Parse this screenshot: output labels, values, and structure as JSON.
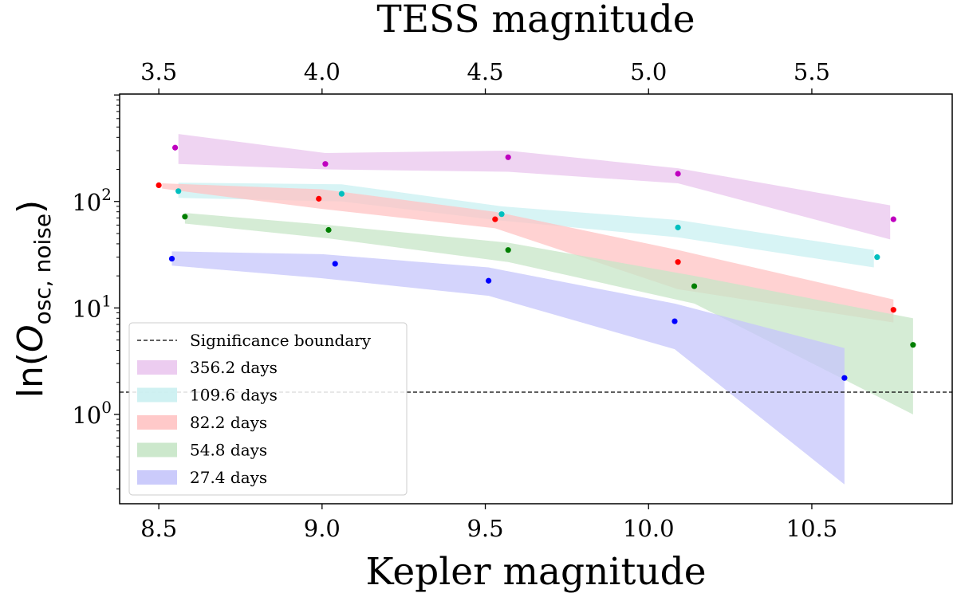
{
  "chart_data": {
    "type": "line",
    "title": "",
    "xlabel": "Kepler magnitude",
    "x2label": "TESS magnitude",
    "ylabel": {
      "prefix": "ln(",
      "var": "O",
      "sub": "osc, noise",
      "suffix": ")"
    },
    "yscale": "log",
    "xlim": [
      8.38,
      10.93
    ],
    "ylim": [
      0.145,
      1020
    ],
    "x_ticks": [
      8.5,
      9.0,
      9.5,
      10.0,
      10.5
    ],
    "x_tick_labels": [
      "8.5",
      "9.0",
      "9.5",
      "10.0",
      "10.5"
    ],
    "x2_ticks": [
      8.5,
      9.0,
      9.5,
      10.0,
      10.5
    ],
    "x2_tick_labels": [
      "3.5",
      "4.0",
      "4.5",
      "5.0",
      "5.5"
    ],
    "y_ticks": [
      1,
      10,
      100
    ],
    "y_tick_labels": [
      {
        "base": "10",
        "exp": "0"
      },
      {
        "base": "10",
        "exp": "1"
      },
      {
        "base": "10",
        "exp": "2"
      }
    ],
    "threshold": {
      "label": "Significance boundary",
      "value": 1.62
    },
    "series": [
      {
        "name": "356.2 days",
        "color": "#bf00bf",
        "fill": "#eac6ee",
        "points": [
          [
            8.55,
            320
          ],
          [
            9.01,
            225
          ],
          [
            9.57,
            260
          ],
          [
            10.09,
            182
          ],
          [
            10.75,
            68
          ]
        ],
        "band_x": [
          8.56,
          9.01,
          9.57,
          10.09,
          10.74
        ],
        "band_upper": [
          430,
          285,
          300,
          205,
          92
        ],
        "band_lower": [
          225,
          200,
          190,
          148,
          44
        ]
      },
      {
        "name": "109.6 days",
        "color": "#00bfbf",
        "fill": "#caf0f1",
        "points": [
          [
            8.56,
            125
          ],
          [
            9.06,
            118
          ],
          [
            9.55,
            76
          ],
          [
            10.09,
            57
          ],
          [
            10.7,
            30
          ]
        ],
        "band_x": [
          8.56,
          9.06,
          9.55,
          10.09,
          10.69
        ],
        "band_upper": [
          150,
          145,
          90,
          67,
          35
        ],
        "band_lower": [
          108,
          100,
          66,
          46,
          24
        ]
      },
      {
        "name": "82.2 days",
        "color": "#ff0000",
        "fill": "#ffc3c3",
        "points": [
          [
            8.5,
            142
          ],
          [
            8.99,
            106
          ],
          [
            9.53,
            68
          ],
          [
            10.09,
            27
          ],
          [
            10.75,
            9.6
          ]
        ],
        "band_x": [
          8.51,
          9.0,
          9.53,
          10.09,
          10.75
        ],
        "band_upper": [
          148,
          130,
          80,
          35,
          12
        ],
        "band_lower": [
          132,
          85,
          56,
          15,
          7.3
        ]
      },
      {
        "name": "54.8 days",
        "color": "#007f00",
        "fill": "#c7e6c7",
        "points": [
          [
            8.58,
            72
          ],
          [
            9.02,
            54
          ],
          [
            9.57,
            35
          ],
          [
            10.14,
            16
          ],
          [
            10.81,
            4.5
          ]
        ],
        "band_x": [
          8.58,
          9.02,
          9.57,
          10.14,
          10.81
        ],
        "band_upper": [
          78,
          60,
          41,
          20,
          8
        ],
        "band_lower": [
          62,
          45,
          27,
          11,
          1.0
        ]
      },
      {
        "name": "27.4 days",
        "color": "#0000ff",
        "fill": "#c5c5fb",
        "points": [
          [
            8.54,
            29
          ],
          [
            9.04,
            26
          ],
          [
            9.51,
            18
          ],
          [
            10.08,
            7.5
          ],
          [
            10.6,
            2.2
          ]
        ],
        "band_x": [
          8.54,
          9.0,
          9.51,
          10.08,
          10.6
        ],
        "band_upper": [
          34,
          32,
          24,
          11,
          4.2
        ],
        "band_lower": [
          25,
          19,
          13,
          4.1,
          0.22
        ]
      }
    ]
  }
}
